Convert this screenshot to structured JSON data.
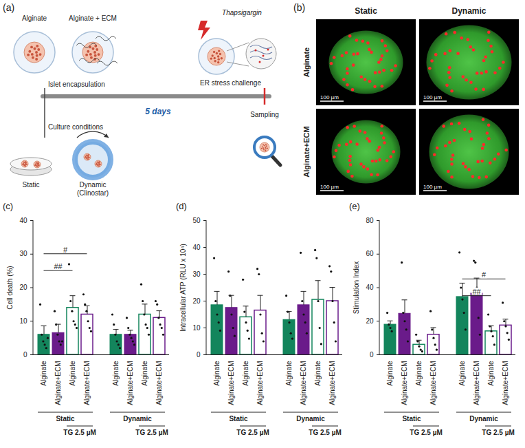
{
  "panels": {
    "a": {
      "label": "(a)",
      "conditions": [
        "Alginate",
        "Alginate + ECM"
      ],
      "start": "Islet encapsulation",
      "culture": "Culture conditions",
      "static": "Static",
      "dynamic": "Dynamic (Clinostar)",
      "duration": "5 days",
      "drug": "Thapsigargin",
      "challenge": "ER stress challenge",
      "end": "Sampling"
    },
    "b": {
      "label": "(b)",
      "columns": [
        "Static",
        "Dynamic"
      ],
      "rows": [
        "Alginate",
        "Alginate+ECM"
      ],
      "scale_bar": "100 µm"
    }
  },
  "chart_data": [
    {
      "type": "bar",
      "panel": "(c)",
      "ylabel": "Cell death (%)",
      "categories": [
        "Alginate",
        "Alginate+ECM",
        "Alginate",
        "Alginate+ECM",
        "Alginate",
        "Alginate+ECM",
        "Alginate",
        "Alginate+ECM"
      ],
      "group": [
        "Static",
        "Static",
        "Static",
        "Static",
        "Dynamic",
        "Dynamic",
        "Dynamic",
        "Dynamic"
      ],
      "treatment": [
        null,
        null,
        "TG 2.5 µM",
        "TG 2.5 µM",
        null,
        null,
        "TG 2.5 µM",
        "TG 2.5 µM"
      ],
      "values": [
        6,
        6.5,
        14,
        12,
        6,
        6,
        12,
        11
      ],
      "errors": [
        2.5,
        2.5,
        3.5,
        2.5,
        1.5,
        1.2,
        3,
        2
      ],
      "points": [
        [
          15,
          6,
          4,
          3,
          2,
          5
        ],
        [
          13,
          9,
          6,
          4,
          3,
          4
        ],
        [
          27,
          16,
          13,
          10,
          9,
          8
        ],
        [
          18,
          15,
          13,
          10,
          8,
          7
        ],
        [
          12,
          9,
          6,
          4,
          3,
          2
        ],
        [
          11,
          8,
          6,
          5,
          4,
          3
        ],
        [
          21,
          16,
          12,
          9,
          8,
          6
        ],
        [
          16,
          15,
          11,
          9,
          8,
          6
        ]
      ],
      "colors": [
        "#13855c",
        "#6a1b8a",
        "#13855c",
        "#6a1b8a",
        "#13855c",
        "#6a1b8a",
        "#13855c",
        "#6a1b8a"
      ],
      "significance": [
        {
          "from": 0,
          "to": 2,
          "label": "##",
          "y": 25
        },
        {
          "from": 0,
          "to": 3,
          "label": "#",
          "y": 30
        }
      ],
      "ylim": [
        0,
        40
      ],
      "yticks": [
        0,
        10,
        20,
        30,
        40
      ]
    },
    {
      "type": "bar",
      "panel": "(d)",
      "ylabel": "Intracellular ATP (RLU x 10⁴)",
      "categories": [
        "Alginate",
        "Alginate+ECM",
        "Alginate",
        "Alginate+ECM",
        "Alginate",
        "Alginate+ECM",
        "Alginate",
        "Alginate+ECM"
      ],
      "group": [
        "Static",
        "Static",
        "Static",
        "Static",
        "Dynamic",
        "Dynamic",
        "Dynamic",
        "Dynamic"
      ],
      "treatment": [
        null,
        null,
        "TG 2.5 µM",
        "TG 2.5 µM",
        null,
        null,
        "TG 2.5 µM",
        "TG 2.5 µM"
      ],
      "values": [
        18.5,
        17.5,
        14,
        16.5,
        13,
        18.5,
        20.5,
        20
      ],
      "errors": [
        5,
        4.5,
        4,
        5.5,
        3,
        5,
        7,
        5
      ],
      "points": [
        [
          36,
          20,
          15,
          12,
          9
        ],
        [
          31,
          22,
          15,
          10,
          7
        ],
        [
          28,
          16,
          12,
          9,
          6
        ],
        [
          32,
          30,
          15,
          8,
          5
        ],
        [
          22,
          16,
          12,
          8,
          6
        ],
        [
          38,
          20,
          15,
          12,
          8
        ],
        [
          39,
          36,
          20,
          10,
          4
        ],
        [
          33,
          31,
          20,
          12,
          5
        ]
      ],
      "colors": [
        "#13855c",
        "#6a1b8a",
        "#13855c",
        "#6a1b8a",
        "#13855c",
        "#6a1b8a",
        "#13855c",
        "#6a1b8a"
      ],
      "significance": [],
      "ylim": [
        0,
        50
      ],
      "yticks": [
        0,
        10,
        20,
        30,
        40,
        50
      ]
    },
    {
      "type": "bar",
      "panel": "(e)",
      "ylabel": "Stimulation Index",
      "categories": [
        "Alginate",
        "Alginate+ECM",
        "Alginate",
        "Alginate+ECM",
        "Alginate",
        "Alginate+ECM",
        "Alginate",
        "Alginate+ECM"
      ],
      "group": [
        "Static",
        "Static",
        "Static",
        "Static",
        "Dynamic",
        "Dynamic",
        "Dynamic",
        "Dynamic"
      ],
      "treatment": [
        null,
        null,
        "TG 2.5 µM",
        "TG 2.5 µM",
        null,
        null,
        "TG 2.5 µM",
        "TG 2.5 µM"
      ],
      "values": [
        18,
        24.5,
        6,
        12,
        34.5,
        36.5,
        14,
        17.5
      ],
      "errors": [
        2,
        8,
        2.5,
        4,
        8,
        9,
        3,
        3.5
      ],
      "points": [
        [
          25,
          18,
          16,
          14
        ],
        [
          55,
          25,
          20,
          15,
          8
        ],
        [
          12,
          8,
          5,
          3,
          2
        ],
        [
          26,
          15,
          10,
          6,
          3
        ],
        [
          61,
          40,
          33,
          25,
          15
        ],
        [
          56,
          55,
          40,
          22,
          12
        ],
        [
          24,
          17,
          14,
          11,
          6
        ],
        [
          31,
          20,
          17,
          13,
          9
        ]
      ],
      "colors": [
        "#13855c",
        "#6a1b8a",
        "#13855c",
        "#6a1b8a",
        "#13855c",
        "#6a1b8a",
        "#13855c",
        "#6a1b8a"
      ],
      "significance": [
        {
          "from": 4,
          "to": 6,
          "label": "##",
          "y": 35
        },
        {
          "from": 4,
          "to": 7,
          "label": "#",
          "y": 45
        }
      ],
      "ylim": [
        0,
        80
      ],
      "yticks": [
        0,
        20,
        40,
        60,
        80
      ]
    }
  ]
}
